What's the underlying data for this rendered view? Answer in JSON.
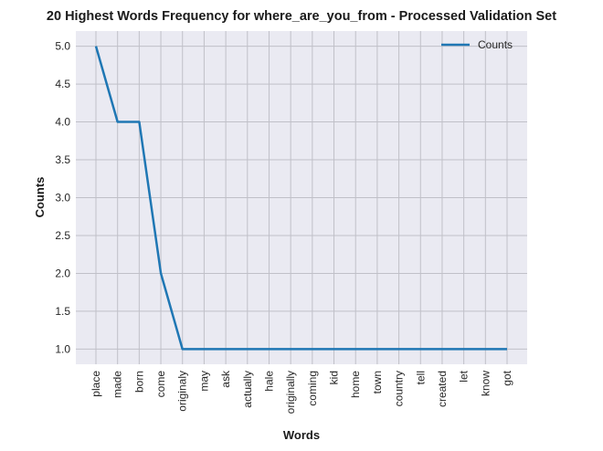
{
  "chart_data": {
    "type": "line",
    "title": "20 Highest Words Frequency for where_are_you_from - Processed Validation Set",
    "xlabel": "Words",
    "ylabel": "Counts",
    "categories": [
      "place",
      "made",
      "born",
      "come",
      "originaly",
      "may",
      "ask",
      "actually",
      "hale",
      "originally",
      "coming",
      "kid",
      "home",
      "town",
      "country",
      "tell",
      "created",
      "let",
      "know",
      "got"
    ],
    "series": [
      {
        "name": "Counts",
        "values": [
          5,
          4,
          4,
          2,
          1,
          1,
          1,
          1,
          1,
          1,
          1,
          1,
          1,
          1,
          1,
          1,
          1,
          1,
          1,
          1
        ],
        "color": "#1f77b4"
      }
    ],
    "ylim": [
      0.8,
      5.2
    ],
    "yticks": [
      "1.0",
      "1.5",
      "2.0",
      "2.5",
      "3.0",
      "3.5",
      "4.0",
      "4.5",
      "5.0"
    ],
    "grid": true,
    "legend_position": "top-right",
    "background_color": "#eaeaf2",
    "grid_color": "#c0c0c8"
  }
}
